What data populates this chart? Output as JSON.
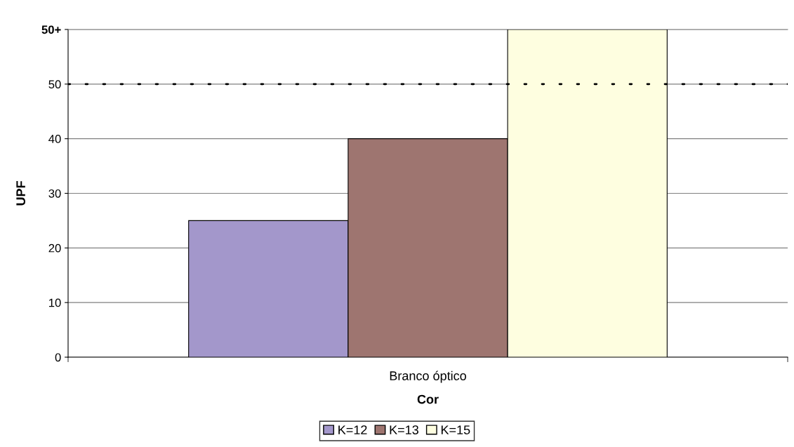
{
  "chart_data": {
    "type": "bar",
    "categories": [
      "Branco óptico"
    ],
    "xlabel": "Cor",
    "ylabel": "UPF",
    "series": [
      {
        "name": "K=12",
        "color": "#a397cb",
        "values": [
          25
        ]
      },
      {
        "name": "K=13",
        "color": "#9e7570",
        "values": [
          40
        ]
      },
      {
        "name": "K=15",
        "color": "#fefee0",
        "values": [
          60
        ]
      }
    ],
    "ylim": [
      0,
      60
    ],
    "yticks": [
      0,
      10,
      20,
      30,
      40,
      50,
      {
        "value": 60,
        "label": "50+"
      }
    ],
    "ref_lines": [
      {
        "axis": "y",
        "value": 50,
        "color": "#000000",
        "line_style": "dotted"
      }
    ],
    "grid": "y",
    "legend": "bottom"
  }
}
